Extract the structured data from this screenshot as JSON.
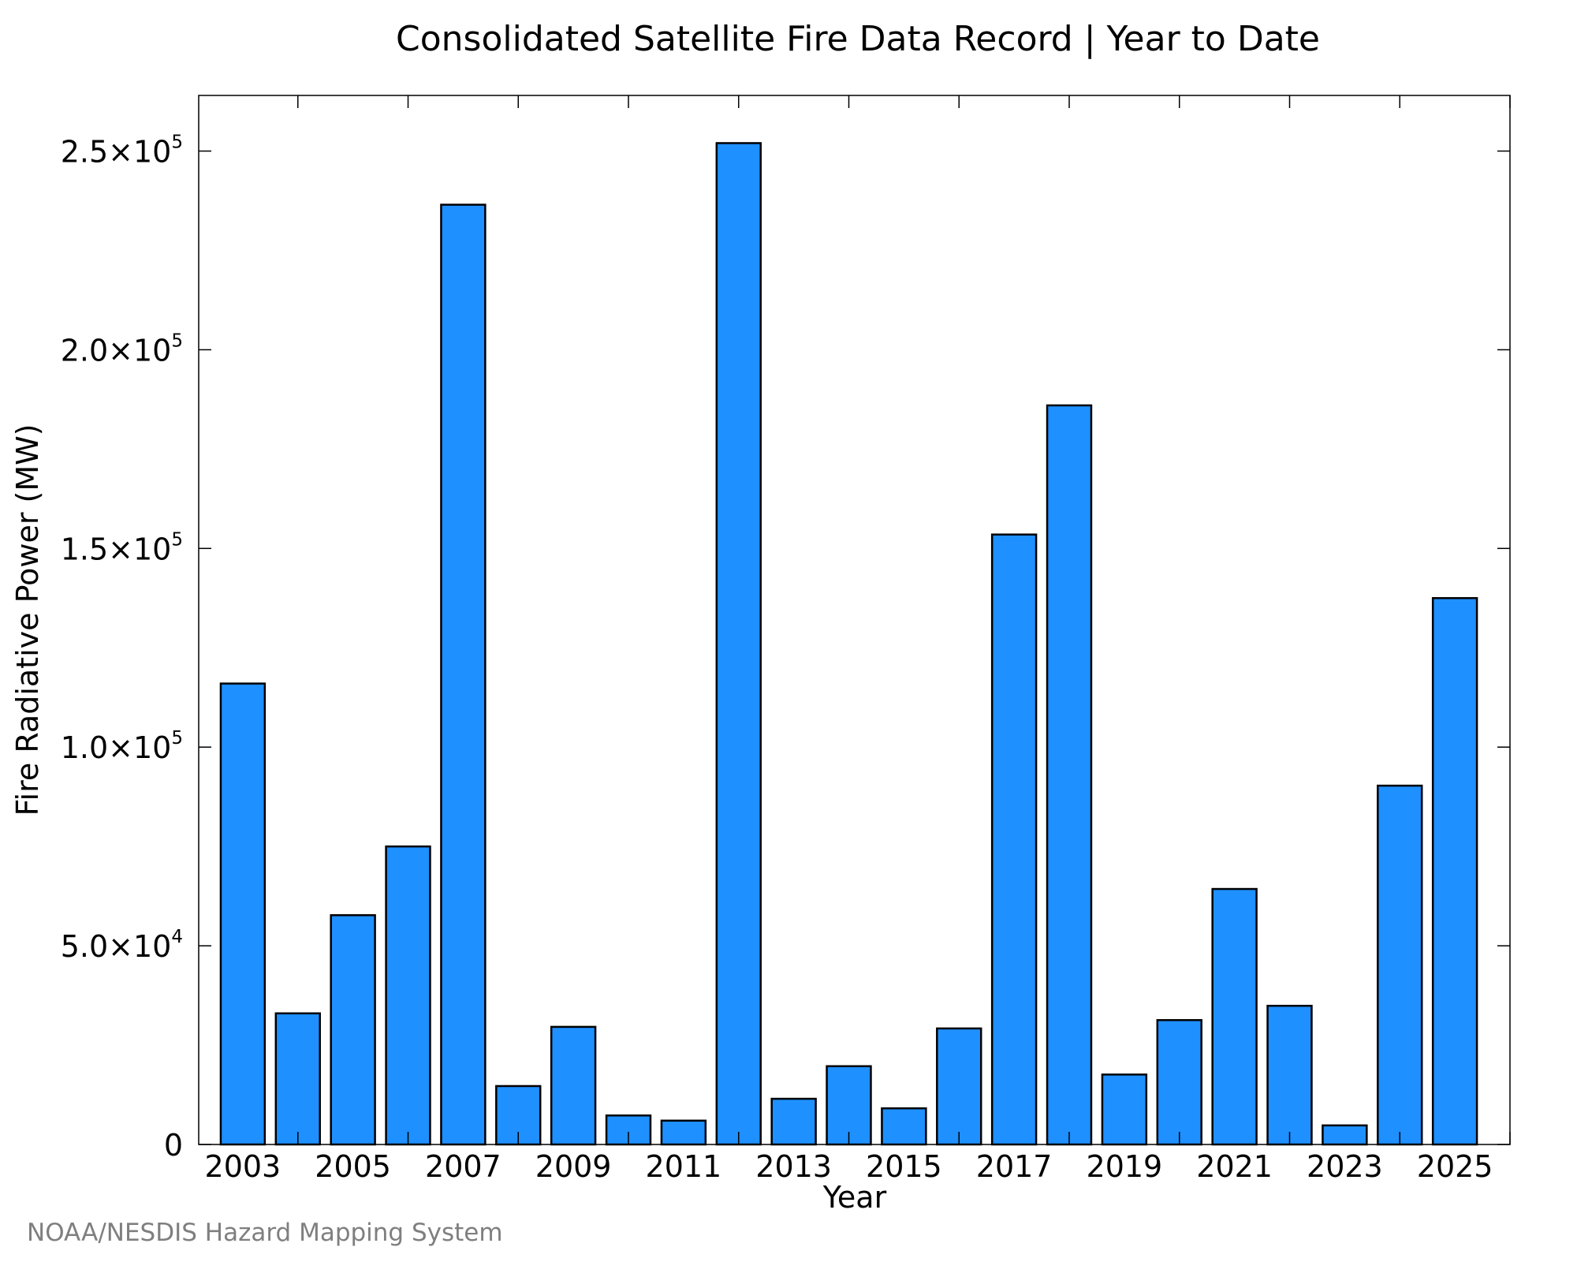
{
  "chart_data": {
    "type": "bar",
    "title": "Consolidated Satellite Fire Data Record | Year to Date",
    "xlabel": "Year",
    "ylabel": "Fire Radiative Power (MW)",
    "categories": [
      "2003",
      "2004",
      "2005",
      "2006",
      "2007",
      "2008",
      "2009",
      "2010",
      "2011",
      "2012",
      "2013",
      "2014",
      "2015",
      "2016",
      "2017",
      "2018",
      "2019",
      "2020",
      "2021",
      "2022",
      "2023",
      "2024",
      "2025"
    ],
    "values": [
      116000,
      33000,
      57700,
      75000,
      236500,
      14700,
      29600,
      7300,
      6000,
      252000,
      11500,
      19700,
      9100,
      29200,
      153500,
      186000,
      17600,
      31300,
      64300,
      34900,
      4800,
      90300,
      137500
    ],
    "x_tick_labels": [
      "2003",
      "2005",
      "2007",
      "2009",
      "2011",
      "2013",
      "2015",
      "2017",
      "2019",
      "2021",
      "2023",
      "2025"
    ],
    "y_ticks": [
      {
        "value": 0,
        "mantissa": "0",
        "exponent": ""
      },
      {
        "value": 50000,
        "mantissa": "5.0×10",
        "exponent": "4"
      },
      {
        "value": 100000,
        "mantissa": "1.0×10",
        "exponent": "5"
      },
      {
        "value": 150000,
        "mantissa": "1.5×10",
        "exponent": "5"
      },
      {
        "value": 200000,
        "mantissa": "2.0×10",
        "exponent": "5"
      },
      {
        "value": 250000,
        "mantissa": "2.5×10",
        "exponent": "5"
      }
    ],
    "xlim": [
      2002.2,
      2026
    ],
    "ylim": [
      0,
      264000
    ],
    "grid": false,
    "legend": "none",
    "bar_color": "#1e90ff",
    "edge_color": "#000000",
    "credit": "NOAA/NESDIS Hazard Mapping System"
  }
}
